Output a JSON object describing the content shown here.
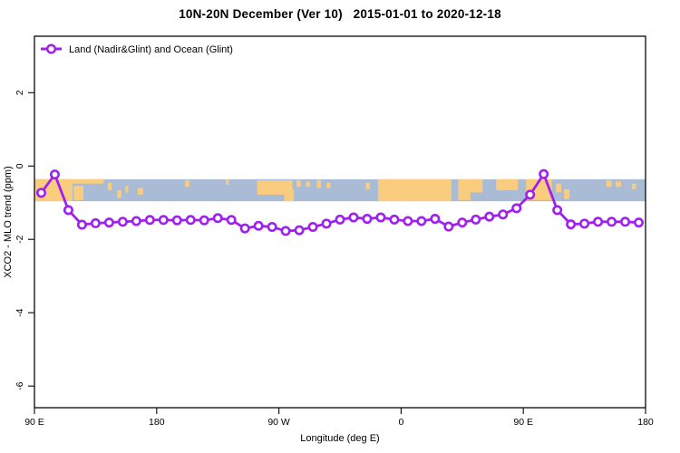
{
  "title": "10N-20N December (Ver 10)   2015-01-01 to 2020-12-18",
  "legend": {
    "label": "Land (Nadir&Glint) and Ocean (Glint)"
  },
  "colors": {
    "line": "#A020F0",
    "marker_fill": "#ffffff",
    "ocean": "#A9BBD5",
    "land": "#FACC7E",
    "axis": "#1a1a1a",
    "text": "#000000"
  },
  "chart_data": {
    "type": "line",
    "title": "10N-20N December (Ver 10)   2015-01-01 to 2020-12-18",
    "xlabel": "Longitude (deg E)",
    "ylabel": "XCO2 - MLO trend (ppm)",
    "legend_position": "top-left",
    "grid": false,
    "x_range": [
      90,
      540
    ],
    "y_range": [
      -6.59,
      3.54
    ],
    "x_ticks": [
      {
        "value": 90,
        "label": "90 E"
      },
      {
        "value": 180,
        "label": "180"
      },
      {
        "value": 270,
        "label": "90 W"
      },
      {
        "value": 360,
        "label": "0"
      },
      {
        "value": 450,
        "label": "90 E"
      },
      {
        "value": 540,
        "label": "180"
      }
    ],
    "y_ticks": [
      {
        "value": 2,
        "label": "2"
      },
      {
        "value": 0,
        "label": "0"
      },
      {
        "value": -2,
        "label": "-2"
      },
      {
        "value": -4,
        "label": "-4"
      },
      {
        "value": -6,
        "label": "-6"
      }
    ],
    "series": [
      {
        "name": "Land (Nadir&Glint) and Ocean (Glint)",
        "color": "#A020F0",
        "marker": "open-circle",
        "x": [
          95,
          105,
          115,
          125,
          135,
          145,
          155,
          165,
          175,
          185,
          195,
          205,
          215,
          225,
          235,
          245,
          255,
          265,
          275,
          285,
          295,
          305,
          315,
          325,
          335,
          345,
          355,
          365,
          375,
          385,
          395,
          405,
          415,
          425,
          435,
          445,
          455,
          465,
          475,
          485,
          495,
          505,
          515,
          525,
          535
        ],
        "values": [
          -0.73,
          -0.23,
          -1.2,
          -1.6,
          -1.56,
          -1.54,
          -1.52,
          -1.5,
          -1.47,
          -1.47,
          -1.48,
          -1.47,
          -1.48,
          -1.42,
          -1.47,
          -1.7,
          -1.63,
          -1.66,
          -1.77,
          -1.75,
          -1.66,
          -1.57,
          -1.46,
          -1.4,
          -1.44,
          -1.4,
          -1.46,
          -1.5,
          -1.5,
          -1.44,
          -1.65,
          -1.54,
          -1.46,
          -1.38,
          -1.32,
          -1.15,
          -0.78,
          -0.22,
          -1.2,
          -1.59,
          -1.57,
          -1.52,
          -1.52,
          -1.52,
          -1.54
        ]
      }
    ],
    "map_band": {
      "description": "world-map strip of the 10N-20N latitude band drawn across the plot",
      "y_top": -0.36,
      "y_bottom": -0.96,
      "ocean_color": "#A9BBD5",
      "land_color": "#FACC7E",
      "land_patches": [
        [
          90,
          118,
          0,
          1
        ],
        [
          90,
          141,
          0,
          0.2
        ],
        [
          119,
          126,
          0.3,
          0.95
        ],
        [
          144,
          147,
          0.15,
          0.5
        ],
        [
          151,
          154,
          0.5,
          0.85
        ],
        [
          157,
          159,
          0.3,
          0.6
        ],
        [
          166,
          170,
          0.4,
          0.7
        ],
        [
          201,
          204,
          0.05,
          0.35
        ],
        [
          231,
          233,
          0,
          0.25
        ],
        [
          254,
          280,
          0.05,
          0.7
        ],
        [
          274,
          281,
          0.45,
          1
        ],
        [
          283,
          286,
          0.05,
          0.35
        ],
        [
          290,
          293,
          0.1,
          0.35
        ],
        [
          298,
          301,
          0.05,
          0.4
        ],
        [
          305,
          308,
          0.15,
          0.4
        ],
        [
          334,
          337,
          0.15,
          0.45
        ],
        [
          343,
          397,
          0,
          1
        ],
        [
          402,
          420,
          0,
          0.6
        ],
        [
          402,
          411,
          0.6,
          0.95
        ],
        [
          430,
          446,
          0,
          0.5
        ],
        [
          452,
          471,
          0,
          0.95
        ],
        [
          474,
          478,
          0.2,
          0.6
        ],
        [
          480,
          484,
          0.45,
          0.9
        ],
        [
          511,
          515,
          0.05,
          0.35
        ],
        [
          518,
          522,
          0.1,
          0.35
        ],
        [
          530,
          533,
          0.2,
          0.45
        ]
      ]
    }
  }
}
